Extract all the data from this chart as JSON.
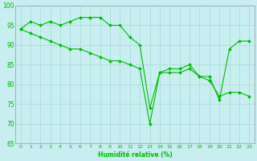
{
  "xlabel": "Humidité relative (%)",
  "background_color": "#c8eef0",
  "grid_color": "#aadddd",
  "line_color": "#00bb00",
  "ylim": [
    65,
    100
  ],
  "xlim": [
    -0.5,
    23.5
  ],
  "yticks": [
    65,
    70,
    75,
    80,
    85,
    90,
    95,
    100
  ],
  "xticks": [
    0,
    1,
    2,
    3,
    4,
    5,
    6,
    7,
    8,
    9,
    10,
    11,
    12,
    13,
    14,
    15,
    16,
    17,
    18,
    19,
    20,
    21,
    22,
    23
  ],
  "line1_x": [
    0,
    1,
    2,
    3,
    4,
    5,
    6,
    7,
    8,
    9,
    10,
    11,
    12,
    13,
    14,
    15,
    16,
    17,
    18,
    19,
    20,
    21,
    22,
    23
  ],
  "line1_y": [
    94,
    96,
    95,
    96,
    95,
    96,
    97,
    97,
    97,
    95,
    95,
    92,
    90,
    74,
    83,
    84,
    84,
    85,
    82,
    82,
    76,
    89,
    91,
    91
  ],
  "line2_x": [
    0,
    1,
    2,
    3,
    4,
    5,
    6,
    7,
    8,
    9,
    10,
    11,
    12,
    13,
    14,
    15,
    16,
    17,
    18,
    19,
    20,
    21,
    22,
    23
  ],
  "line2_y": [
    94,
    93,
    92,
    91,
    90,
    89,
    89,
    88,
    87,
    86,
    86,
    85,
    84,
    70,
    83,
    83,
    83,
    84,
    82,
    81,
    77,
    78,
    78,
    77
  ]
}
